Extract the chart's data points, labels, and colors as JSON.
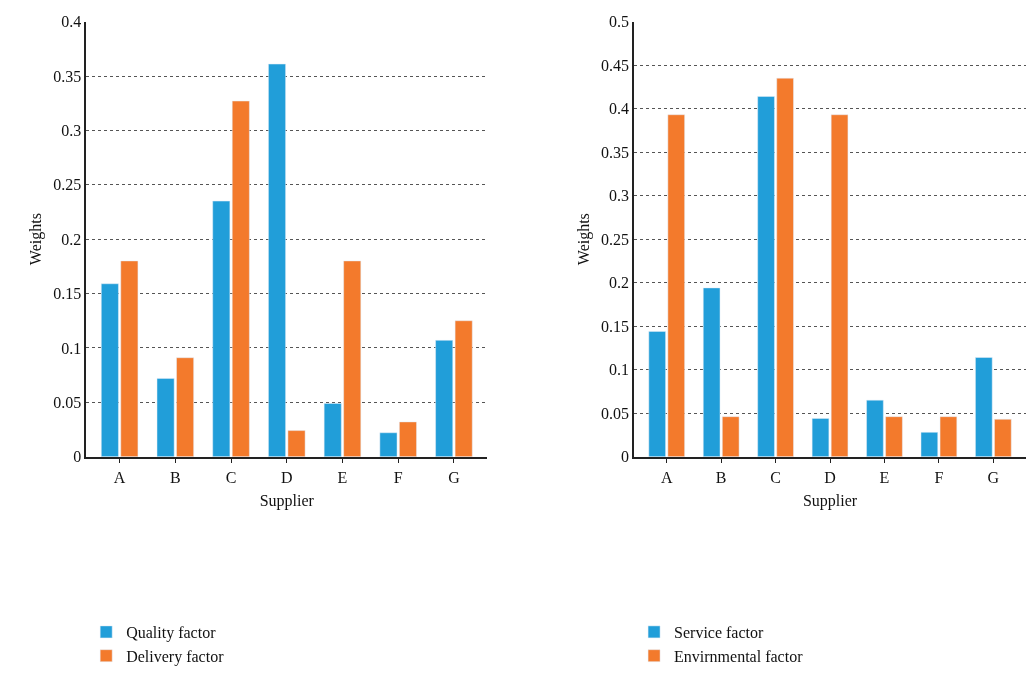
{
  "chart_data": [
    {
      "type": "bar",
      "xlabel": "Supplier",
      "ylabel": "Weights",
      "categories": [
        "A",
        "B",
        "C",
        "D",
        "E",
        "F",
        "G"
      ],
      "series": [
        {
          "name": "Quality factor",
          "color": "#219ed9",
          "values": [
            0.159,
            0.072,
            0.235,
            0.361,
            0.049,
            0.022,
            0.107
          ]
        },
        {
          "name": "Delivery factor",
          "color": "#f37a2c",
          "values": [
            0.18,
            0.091,
            0.327,
            0.024,
            0.18,
            0.032,
            0.125
          ]
        }
      ],
      "ylim": [
        0,
        0.4
      ],
      "yticks": [
        0,
        0.05,
        0.1,
        0.15,
        0.2,
        0.25,
        0.3,
        0.35,
        0.4
      ],
      "grid": "y",
      "legend": "bottom"
    },
    {
      "type": "bar",
      "xlabel": "Supplier",
      "ylabel": "Weights",
      "categories": [
        "A",
        "B",
        "C",
        "D",
        "E",
        "F",
        "G"
      ],
      "series": [
        {
          "name": "Service factor",
          "color": "#219ed9",
          "values": [
            0.144,
            0.194,
            0.414,
            0.044,
            0.065,
            0.028,
            0.114
          ]
        },
        {
          "name": "Envirnmental factor",
          "color": "#f37a2c",
          "values": [
            0.393,
            0.046,
            0.435,
            0.393,
            0.046,
            0.046,
            0.043
          ]
        }
      ],
      "ylim": [
        0,
        0.5
      ],
      "yticks": [
        0,
        0.05,
        0.1,
        0.15,
        0.2,
        0.25,
        0.3,
        0.35,
        0.4,
        0.45,
        0.5
      ],
      "grid": "y",
      "legend": "bottom"
    }
  ]
}
